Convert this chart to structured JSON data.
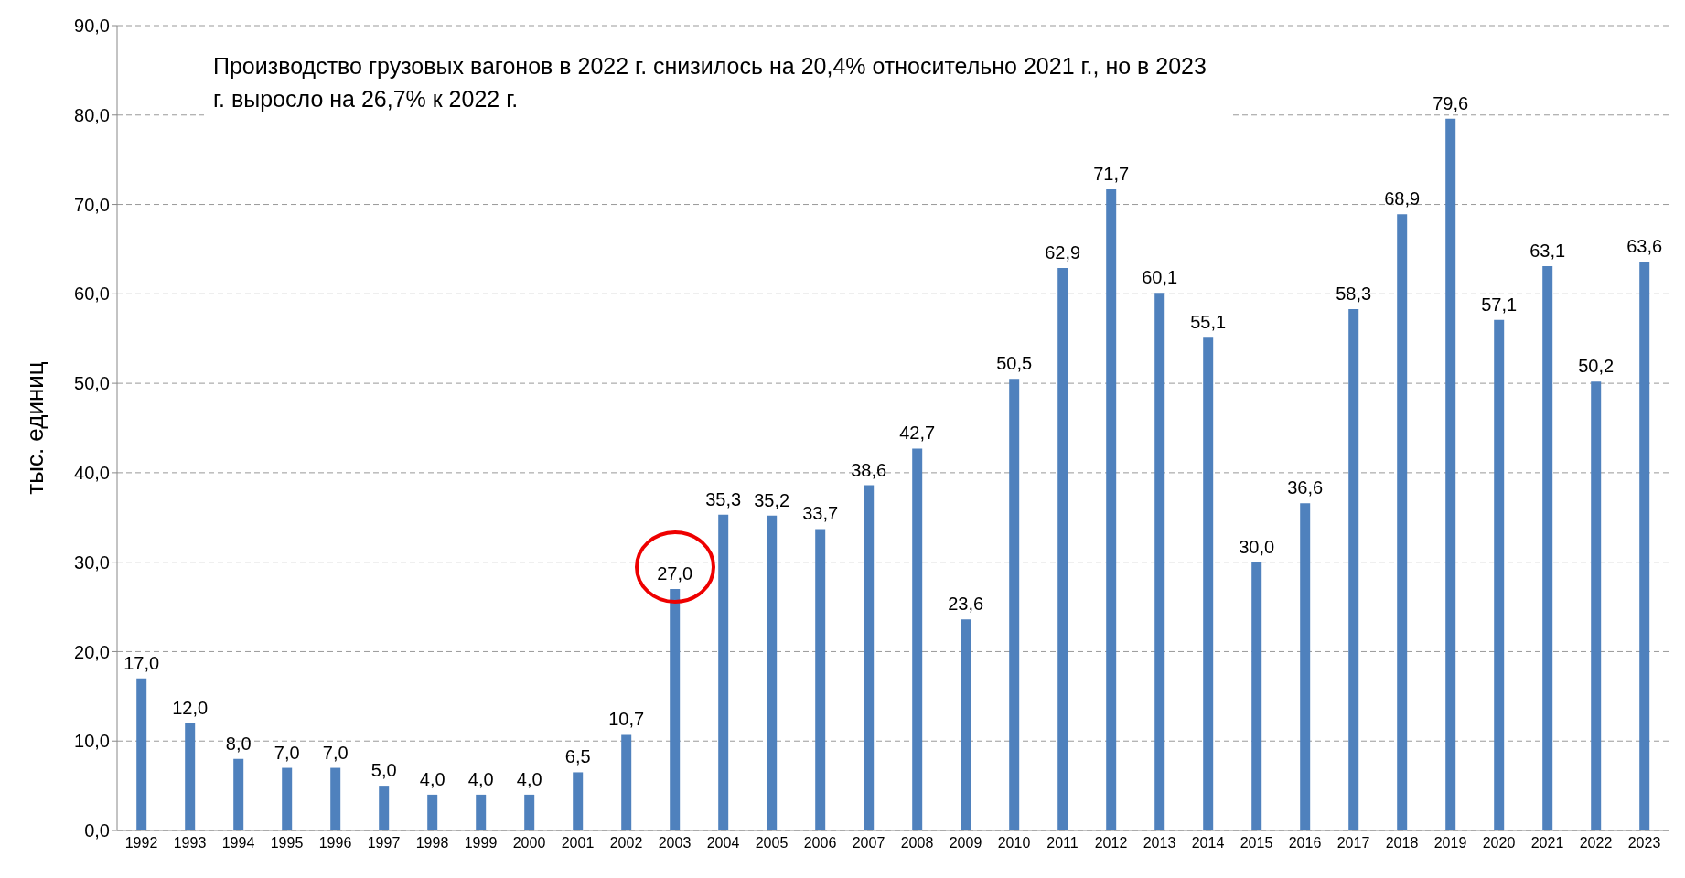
{
  "chart_data": {
    "type": "bar",
    "ylabel": "тыс. единиц",
    "annotations": [
      "Производство грузовых вагонов в 2022 г. снизилось на 20,4% относительно 2021 г., но в 2023 г. выросло на 26,7% к 2022 г."
    ],
    "categories": [
      "1992",
      "1993",
      "1994",
      "1995",
      "1996",
      "1997",
      "1998",
      "1999",
      "2000",
      "2001",
      "2002",
      "2003",
      "2004",
      "2005",
      "2006",
      "2007",
      "2008",
      "2009",
      "2010",
      "2011",
      "2012",
      "2013",
      "2014",
      "2015",
      "2016",
      "2017",
      "2018",
      "2019",
      "2020",
      "2021",
      "2022",
      "2023"
    ],
    "values": [
      17.0,
      12.0,
      8.0,
      7.0,
      7.0,
      5.0,
      4.0,
      4.0,
      4.0,
      6.5,
      10.7,
      27.0,
      35.3,
      35.2,
      33.7,
      38.6,
      42.7,
      23.6,
      50.5,
      62.9,
      71.7,
      60.1,
      55.1,
      30.0,
      36.6,
      58.3,
      68.9,
      79.6,
      57.1,
      63.1,
      50.2,
      63.6
    ],
    "value_labels": [
      "17,0",
      "12,0",
      "8,0",
      "7,0",
      "7,0",
      "5,0",
      "4,0",
      "4,0",
      "4,0",
      "6,5",
      "10,7",
      "27,0",
      "35,3",
      "35,2",
      "33,7",
      "38,6",
      "42,7",
      "23,6",
      "50,5",
      "62,9",
      "71,7",
      "60,1",
      "55,1",
      "30,0",
      "36,6",
      "58,3",
      "68,9",
      "79,6",
      "57,1",
      "63,1",
      "50,2",
      "63,6"
    ],
    "color": "#4f81bd",
    "ylim": [
      0,
      90
    ],
    "yticks": [
      {
        "value": 0,
        "label": "0,0"
      },
      {
        "value": 10,
        "label": "10,0"
      },
      {
        "value": 20,
        "label": "20,0"
      },
      {
        "value": 30,
        "label": "30,0"
      },
      {
        "value": 40,
        "label": "40,0"
      },
      {
        "value": 50,
        "label": "50,0"
      },
      {
        "value": 60,
        "label": "60,0"
      },
      {
        "value": 70,
        "label": "70,0"
      },
      {
        "value": 80,
        "label": "80,0"
      },
      {
        "value": 90,
        "label": "90,0"
      }
    ],
    "grid": "y",
    "legend": false
  }
}
